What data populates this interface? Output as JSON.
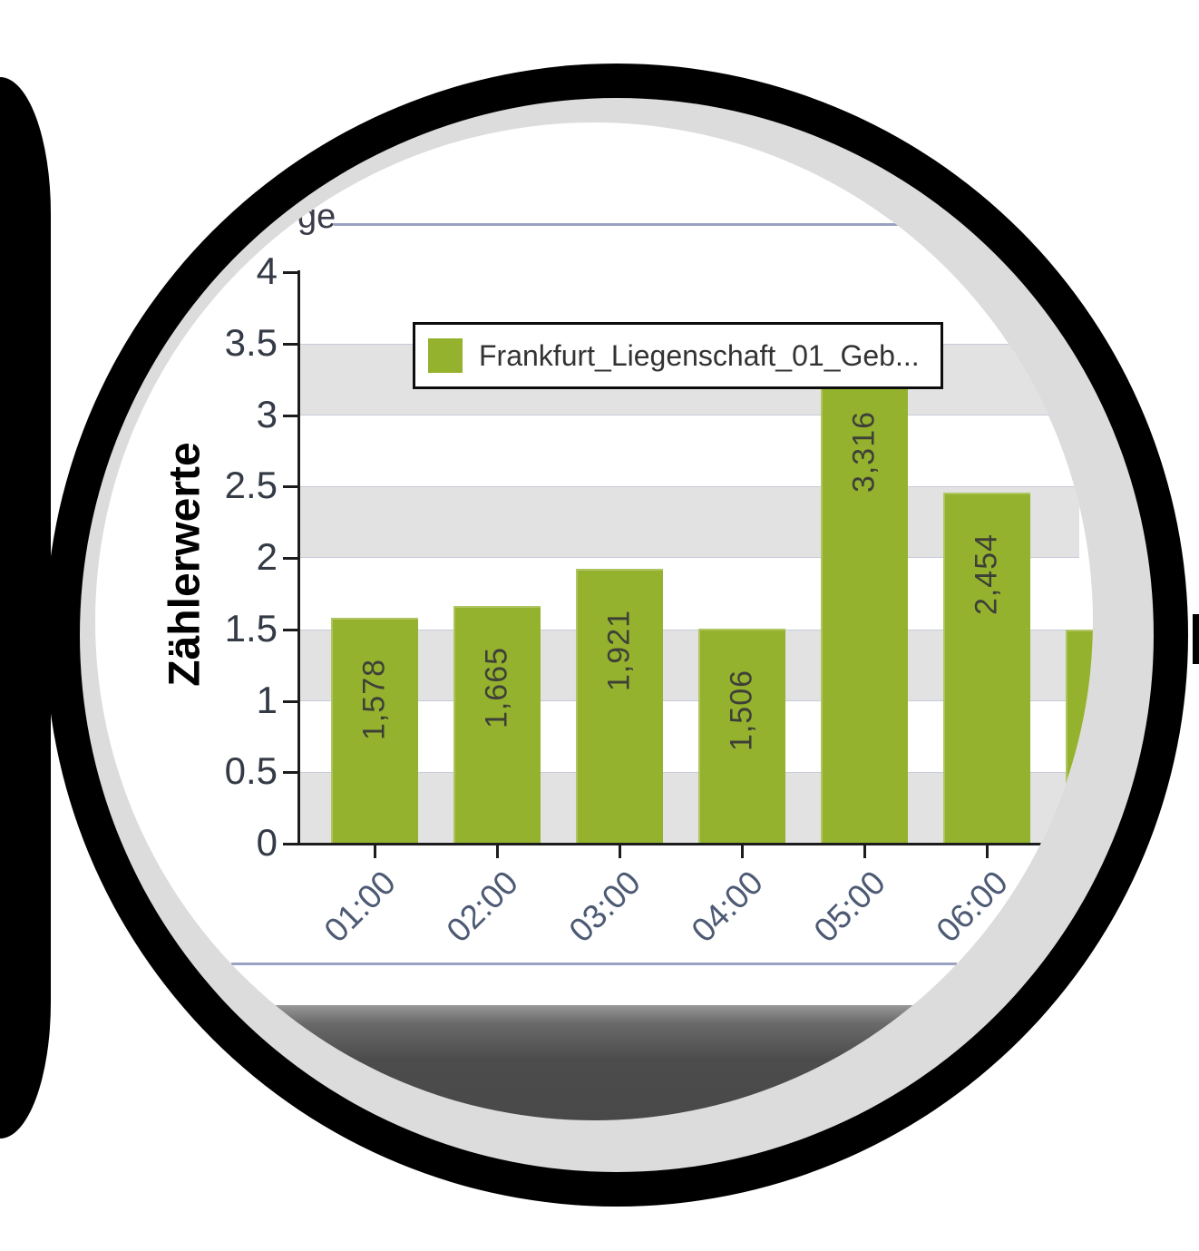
{
  "magnifier": {
    "outer_ring_color": "#000000",
    "inner_ring_color": "#dcdcdc",
    "lens_background": "#ffffff",
    "bottom_panel_color": "#4c4c4c"
  },
  "partial_text_top_left": "ge",
  "chart_data": {
    "type": "bar",
    "title": "",
    "ylabel": "Zählerwerte",
    "xlabel": "",
    "categories": [
      "01:00",
      "02:00",
      "03:00",
      "04:00",
      "05:00",
      "06:00"
    ],
    "series": [
      {
        "name": "Frankfurt_Liegenschaft_01_Geb...",
        "values": [
          1.578,
          1.665,
          1.921,
          1.506,
          3.316,
          2.454
        ],
        "value_labels": [
          "1,578",
          "1,665",
          "1,921",
          "1,506",
          "3,316",
          "2,454"
        ],
        "color": "#95b22e"
      }
    ],
    "partial_bar": {
      "approx_value": 1.5
    },
    "ylim": [
      0,
      4
    ],
    "y_ticks": [
      0,
      0.5,
      1,
      1.5,
      2,
      2.5,
      3,
      3.5,
      4
    ],
    "y_tick_labels": [
      "0",
      "0.5",
      "1",
      "1.5",
      "2",
      "2.5",
      "3",
      "3.5",
      "4"
    ],
    "legend": {
      "entries": [
        "Frankfurt_Liegenschaft_01_Geb..."
      ],
      "position": "top-center",
      "swatch_color": "#95b22e"
    },
    "grid": "alternating horizontal gray bands",
    "band_color": "#e2e2e2",
    "axis_color": "#1c1c1c"
  }
}
